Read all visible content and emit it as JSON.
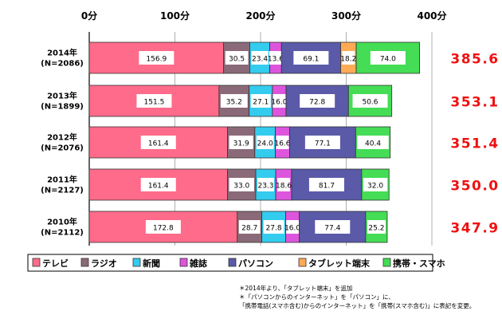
{
  "chart_data": {
    "type": "bar",
    "orientation": "horizontal",
    "stacked": true,
    "title": "",
    "xlabel": "",
    "ylabel": "",
    "xlim": [
      0,
      400
    ],
    "x_ticks": [
      "0分",
      "100分",
      "200分",
      "300分",
      "400分"
    ],
    "grid": true,
    "legend_position": "bottom",
    "categories": [
      "2014年\n(N=2086)",
      "2013年\n(N=1899)",
      "2012年\n(N=2076)",
      "2011年\n(N=2127)",
      "2010年\n(N=2112)"
    ],
    "series": [
      {
        "name": "テレビ",
        "color": "#ff6b8a",
        "values": [
          156.9,
          151.5,
          161.4,
          161.4,
          172.8
        ],
        "labels": [
          "156.9",
          "151.5",
          "161.4",
          "161.4",
          "172.8"
        ]
      },
      {
        "name": "ラジオ",
        "color": "#8a6a78",
        "values": [
          30.5,
          35.2,
          31.9,
          33.0,
          28.7
        ],
        "labels": [
          "30.5",
          "35.2",
          "31.9",
          "33.0",
          "28.7"
        ]
      },
      {
        "name": "新聞",
        "color": "#33ccee",
        "values": [
          23.4,
          27.1,
          24.0,
          23.3,
          27.8
        ],
        "labels": [
          "23.4",
          "27.1",
          "24.0",
          "23.3",
          "27.8"
        ]
      },
      {
        "name": "雑誌",
        "color": "#dd55dd",
        "values": [
          13.6,
          16.0,
          16.6,
          18.6,
          16.0
        ],
        "labels": [
          "13.6",
          "16.0",
          "16.6",
          "18.6",
          "16.0"
        ]
      },
      {
        "name": "パソコン",
        "color": "#5a5aa8",
        "values": [
          69.1,
          72.8,
          77.1,
          81.7,
          77.4
        ],
        "labels": [
          "69.1",
          "72.8",
          "77.1",
          "81.7",
          "77.4"
        ]
      },
      {
        "name": "タブレット端末",
        "color": "#ffaa55",
        "values": [
          18.2,
          0,
          0,
          0,
          0
        ],
        "labels": [
          "18.2",
          "",
          "",
          "",
          ""
        ]
      },
      {
        "name": "携帯・スマホ",
        "color": "#44dd55",
        "values": [
          74.0,
          50.6,
          40.4,
          32.0,
          25.2
        ],
        "labels": [
          "74.0",
          "50.6",
          "40.4",
          "32.0",
          "25.2"
        ]
      }
    ],
    "totals": [
      385.6,
      353.1,
      351.4,
      350.0,
      347.9
    ],
    "total_labels": [
      "385.6",
      "353.1",
      "351.4",
      "350.0",
      "347.9"
    ],
    "total_color": "#ee1111"
  },
  "notes": [
    "＊2014年より、「タブレット端末」を追加",
    "＊「パソコンからのインターネット」を「パソコン」に、",
    "「携帯電話(スマホ含む)からのインターネット」を「携帯(スマホ含む)」に表記を変更。"
  ]
}
